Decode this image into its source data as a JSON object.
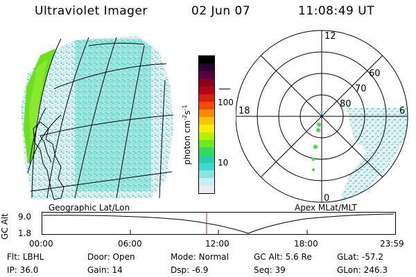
{
  "header": {
    "instrument": "Ultraviolet Imager",
    "date": "02 Jun 07",
    "time": "11:08:49 UT"
  },
  "colorbar": {
    "label_main": "photon cm",
    "label_sup1": "-2",
    "label_mid": "s",
    "label_sup2": "-1",
    "ticks": [
      "100",
      "10"
    ],
    "colors": [
      "#000000",
      "#2a0030",
      "#5a0040",
      "#8a0020",
      "#b80018",
      "#d82010",
      "#f04a08",
      "#f88a00",
      "#fcc400",
      "#f4f000",
      "#b8f000",
      "#70e820",
      "#30dc60",
      "#20d0a8",
      "#40d8d0",
      "#88e4e4",
      "#c8eef0",
      "#ececec"
    ]
  },
  "left_panel": {
    "label": "Geographic Lat/Lon",
    "aurora_color": "#40d8d0",
    "patch_color": "#70e820"
  },
  "right_panel": {
    "label": "Apex MLat/MLT",
    "mlt_labels": {
      "top": "12",
      "left": "18",
      "right": "6",
      "bottom": "0"
    },
    "lat_labels": [
      "60",
      "70",
      "80"
    ]
  },
  "altitude_plot": {
    "ylabel": "GC Alt",
    "ymax": "9.0",
    "ymin": "1.8",
    "x_ticks": [
      "00:00",
      "06:00",
      "12:00",
      "18:00",
      "23:59"
    ],
    "current_time_color": "#c02020"
  },
  "footer": {
    "row1": [
      {
        "label": "Flt:",
        "value": "LBHL"
      },
      {
        "label": "Door:",
        "value": "Open"
      },
      {
        "label": "Mode:",
        "value": "Normal"
      },
      {
        "label": "GC Alt:",
        "value": "5.6 Re"
      },
      {
        "label": "GLat:",
        "value": "-57.2"
      }
    ],
    "row2": [
      {
        "label": "IP:",
        "value": "36.0"
      },
      {
        "label": "Gain:",
        "value": "14"
      },
      {
        "label": "Dsp:",
        "value": "-6.9"
      },
      {
        "label": "Seq:",
        "value": "39"
      },
      {
        "label": "GLon:",
        "value": "246.3"
      }
    ]
  }
}
